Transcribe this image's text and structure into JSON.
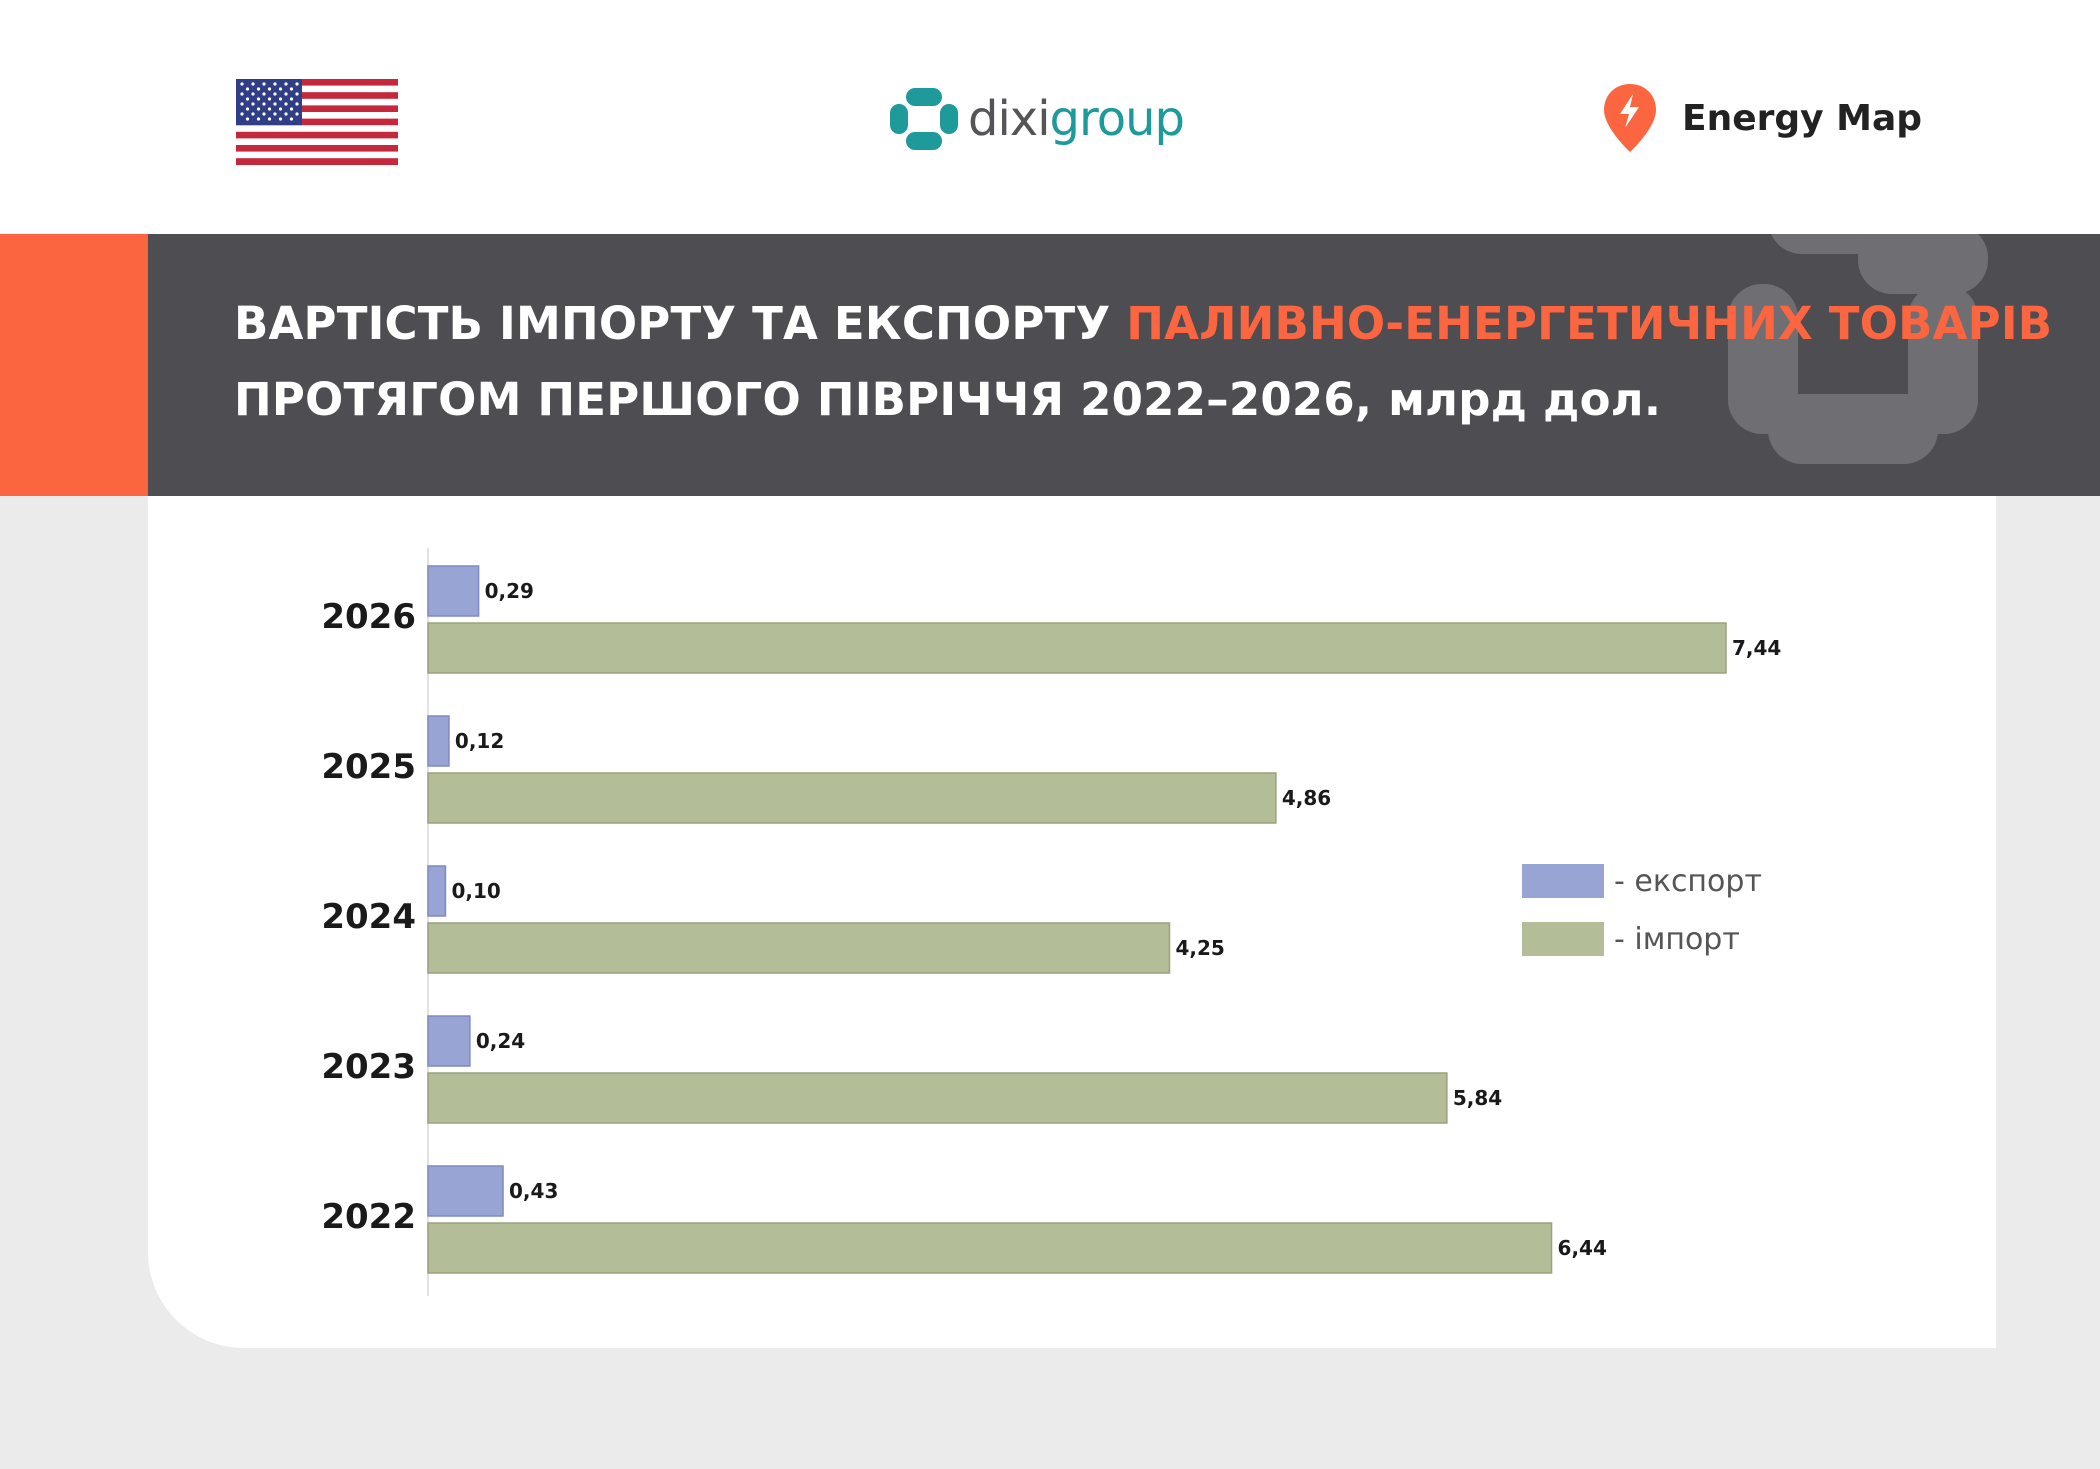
{
  "header": {
    "flag_icon": "us-flag-icon",
    "dixi_logo_part1": "dixi",
    "dixi_logo_part2": "group",
    "energymap_logo_text": "Energy Map",
    "colors": {
      "accent": "#fb6540",
      "band": "#4d4d52",
      "dixi_teal": "#1e9a9a"
    }
  },
  "title": {
    "part1": "ВАРТІСТЬ ІМПОРТУ ТА ЕКСПОРТУ ",
    "highlight": "ПАЛИВНО-ЕНЕРГЕТИЧНИХ ТОВАРІВ",
    "part2": " ПРОТЯГОМ ПЕРШОГО ПІВРІЧЧЯ 2022–2026, млрд дол."
  },
  "chart_data": {
    "type": "bar",
    "orientation": "horizontal",
    "categories": [
      "2026",
      "2025",
      "2024",
      "2023",
      "2022"
    ],
    "series": [
      {
        "name": "- експорт",
        "color": "#98a4d3",
        "values": [
          0.29,
          0.12,
          0.1,
          0.24,
          0.43
        ],
        "labels": [
          "0,29",
          "0,12",
          "0,10",
          "0,24",
          "0,43"
        ]
      },
      {
        "name": "- імпорт",
        "color": "#b3bd98",
        "values": [
          7.44,
          4.86,
          4.25,
          5.84,
          6.44
        ],
        "labels": [
          "7,44",
          "4,86",
          "4,25",
          "5,84",
          "6,44"
        ]
      }
    ],
    "xlim": [
      0,
      7.44
    ],
    "grid": false,
    "legend_position": "right"
  }
}
